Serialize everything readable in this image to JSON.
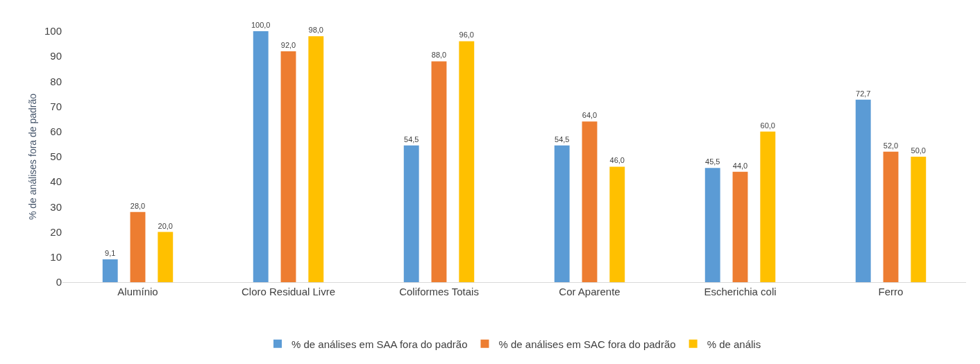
{
  "chart_data": {
    "type": "bar",
    "ylabel": "% de análises fora de padrão",
    "categories": [
      "Alumínio",
      "Cloro Residual Livre",
      "Coliformes Totais",
      "Cor Aparente",
      "Escherichia coli",
      "Ferro"
    ],
    "series": [
      {
        "name": "% de análises em SAA fora do padrão",
        "color": "#5b9bd5",
        "values": [
          9.1,
          100,
          54.5,
          54.5,
          45.5,
          72.7
        ],
        "value_labels": [
          "9,1",
          "100,0",
          "54,5",
          "54,5",
          "45,5",
          "72,7"
        ]
      },
      {
        "name": "% de análises em SAC fora do padrão",
        "color": "#ed7d31",
        "values": [
          28,
          92,
          88,
          64,
          44,
          52
        ],
        "value_labels": [
          "28,0",
          "92,0",
          "88,0",
          "64,0",
          "44,0",
          "52,0"
        ]
      },
      {
        "name": "% de anális",
        "color": "#ffc000",
        "values": [
          20,
          98,
          96,
          46,
          60,
          50
        ],
        "value_labels": [
          "20,0",
          "98,0",
          "96,0",
          "46,0",
          "60,0",
          "50,0"
        ]
      }
    ],
    "ylim": [
      0,
      100
    ],
    "yticks": [
      0,
      10,
      20,
      30,
      40,
      50,
      60,
      70,
      80,
      90,
      100
    ],
    "grid": false,
    "legend": "bottom"
  }
}
